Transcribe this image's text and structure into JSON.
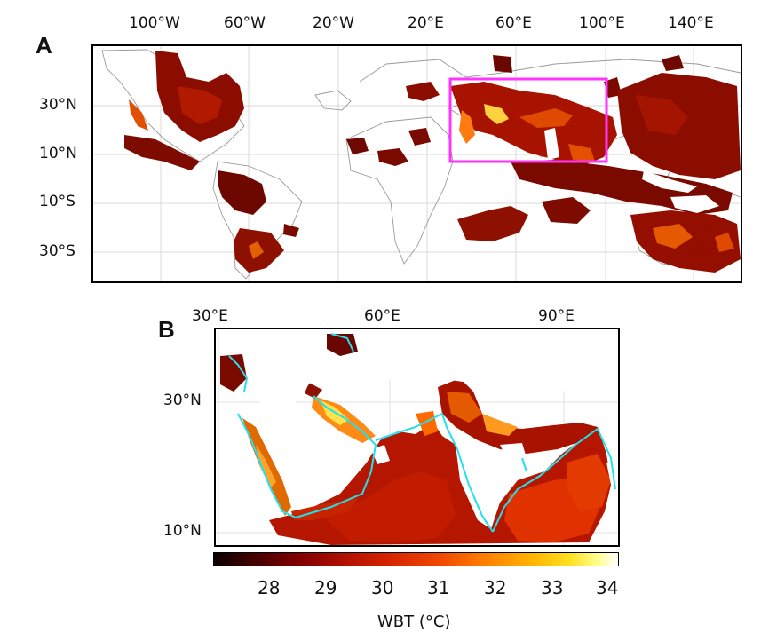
{
  "panel_a": {
    "letter": "A",
    "lon_ticks": [
      "100°W",
      "60°W",
      "20°W",
      "20°E",
      "60°E",
      "100°E",
      "140°E"
    ],
    "lat_ticks": [
      "30°N",
      "10°N",
      "10°S",
      "30°S"
    ],
    "highlight_color": "#ff33ff"
  },
  "panel_b": {
    "letter": "B",
    "lon_ticks": [
      "30°E",
      "60°E",
      "90°E"
    ],
    "lat_ticks": [
      "30°N",
      "10°N"
    ],
    "coast_color": "#22e0ee"
  },
  "colorbar": {
    "label": "WBT (°C)",
    "ticks": [
      "28",
      "29",
      "30",
      "31",
      "32",
      "33",
      "34"
    ],
    "min": 27.1,
    "max": 34.2,
    "colormap": "hot"
  }
}
